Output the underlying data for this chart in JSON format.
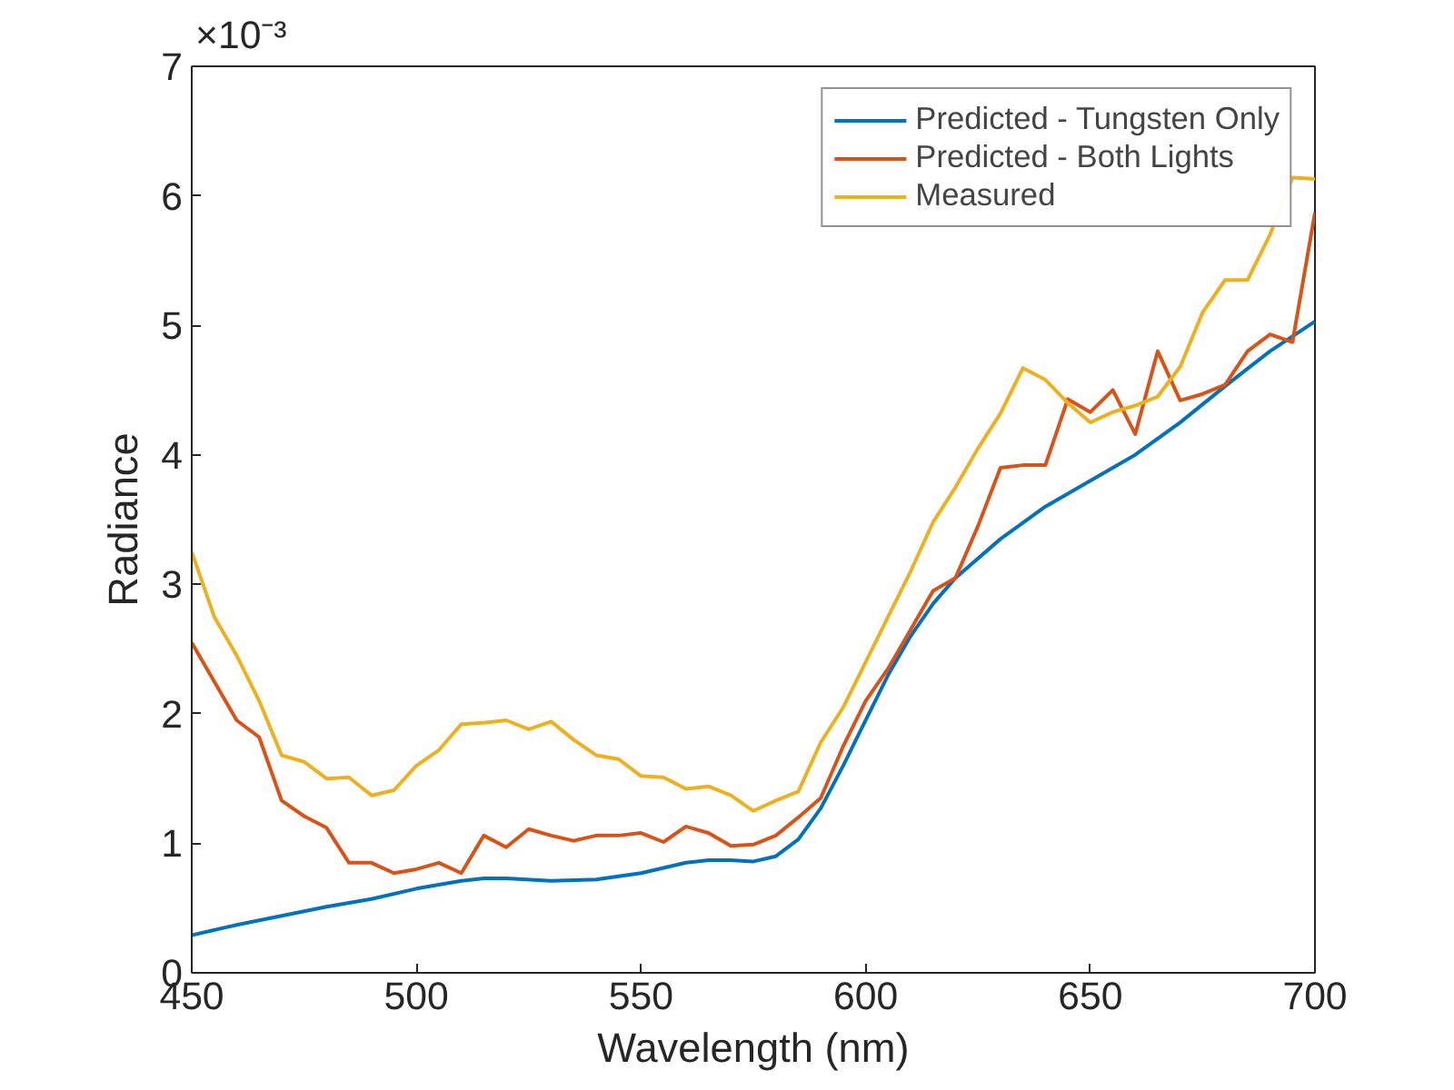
{
  "chart_data": {
    "type": "line",
    "xlabel": "Wavelength (nm)",
    "ylabel": "Radiance",
    "annotations": [
      "×10⁻³"
    ],
    "xlim": [
      450,
      700
    ],
    "xticks": [
      450,
      500,
      550,
      600,
      650,
      700
    ],
    "ylim": [
      0,
      7
    ],
    "yticks": [
      0,
      1,
      2,
      3,
      4,
      5,
      6,
      7
    ],
    "grid": false,
    "legend": "top right",
    "line_style": "solid",
    "series": [
      {
        "name": "Predicted - Tungsten Only",
        "color": "#0072bd",
        "x": [
          450,
          460,
          470,
          480,
          490,
          500,
          510,
          515,
          520,
          530,
          540,
          550,
          560,
          565,
          570,
          575,
          580,
          585,
          590,
          595,
          600,
          605,
          610,
          615,
          620,
          630,
          640,
          650,
          660,
          670,
          680,
          690,
          700
        ],
        "values": [
          0.29,
          0.37,
          0.44,
          0.51,
          0.57,
          0.65,
          0.71,
          0.73,
          0.73,
          0.71,
          0.72,
          0.77,
          0.85,
          0.87,
          0.87,
          0.86,
          0.9,
          1.03,
          1.27,
          1.6,
          1.95,
          2.3,
          2.6,
          2.85,
          3.05,
          3.35,
          3.6,
          3.8,
          4.0,
          4.25,
          4.53,
          4.8,
          5.03
        ]
      },
      {
        "name": "Predicted - Both Lights",
        "color": "#d95319",
        "x": [
          450,
          455,
          460,
          465,
          470,
          475,
          480,
          485,
          490,
          495,
          500,
          505,
          510,
          515,
          520,
          525,
          530,
          535,
          540,
          545,
          550,
          555,
          560,
          565,
          570,
          575,
          580,
          585,
          590,
          595,
          600,
          605,
          610,
          615,
          620,
          625,
          630,
          635,
          640,
          645,
          650,
          655,
          660,
          665,
          670,
          675,
          680,
          685,
          690,
          695,
          700
        ],
        "values": [
          2.55,
          2.25,
          1.95,
          1.82,
          1.33,
          1.21,
          1.12,
          0.85,
          0.85,
          0.77,
          0.8,
          0.85,
          0.77,
          1.06,
          0.97,
          1.11,
          1.06,
          1.02,
          1.06,
          1.06,
          1.08,
          1.01,
          1.13,
          1.08,
          0.98,
          0.99,
          1.06,
          1.2,
          1.35,
          1.75,
          2.1,
          2.35,
          2.65,
          2.95,
          3.05,
          3.45,
          3.9,
          3.92,
          3.92,
          4.43,
          4.33,
          4.5,
          4.16,
          4.8,
          4.42,
          4.47,
          4.54,
          4.8,
          4.93,
          4.87,
          5.87
        ]
      },
      {
        "name": "Measured",
        "color": "#edb120",
        "x": [
          450,
          455,
          460,
          465,
          470,
          475,
          480,
          485,
          490,
          495,
          500,
          505,
          510,
          515,
          520,
          525,
          530,
          535,
          540,
          545,
          550,
          555,
          560,
          565,
          570,
          575,
          580,
          585,
          590,
          595,
          600,
          605,
          610,
          615,
          620,
          625,
          630,
          635,
          640,
          645,
          650,
          655,
          660,
          665,
          670,
          675,
          680,
          685,
          690,
          695,
          700
        ],
        "values": [
          3.25,
          2.75,
          2.45,
          2.1,
          1.68,
          1.63,
          1.5,
          1.51,
          1.37,
          1.41,
          1.6,
          1.72,
          1.92,
          1.93,
          1.95,
          1.88,
          1.94,
          1.8,
          1.68,
          1.65,
          1.52,
          1.51,
          1.42,
          1.44,
          1.37,
          1.25,
          1.33,
          1.4,
          1.78,
          2.05,
          2.4,
          2.75,
          3.1,
          3.48,
          3.75,
          4.05,
          4.32,
          4.67,
          4.58,
          4.4,
          4.25,
          4.33,
          4.38,
          4.45,
          4.68,
          5.1,
          5.35,
          5.35,
          5.7,
          6.14,
          6.13
        ]
      }
    ]
  }
}
